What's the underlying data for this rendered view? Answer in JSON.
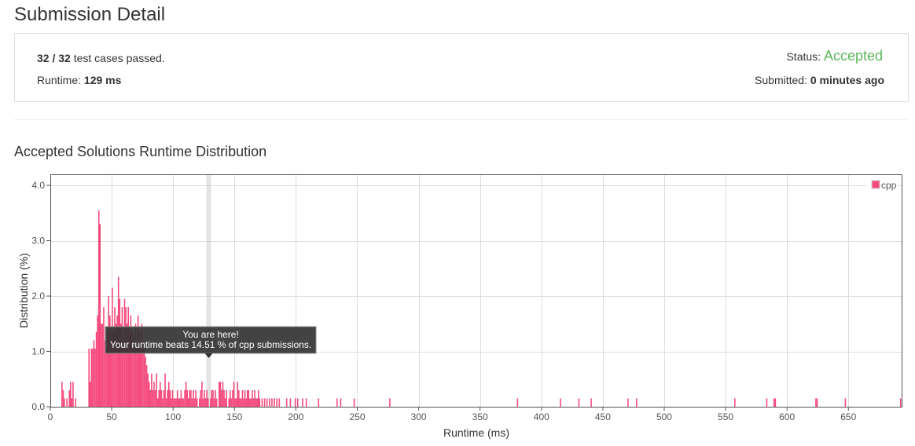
{
  "page": {
    "title": "Submission Detail"
  },
  "summary": {
    "passed_count": "32 / 32",
    "passed_suffix": " test cases passed.",
    "runtime_label": "Runtime: ",
    "runtime_value": "129 ms",
    "status_label": "Status: ",
    "status_value": "Accepted",
    "submitted_label": "Submitted: ",
    "submitted_value": "0 minutes ago"
  },
  "colors": {
    "accent_green": "#5cb85c",
    "bar": "#f54b7e",
    "highlight": "#cccccc"
  },
  "section": {
    "title": "Accepted Solutions Runtime Distribution"
  },
  "tooltip": {
    "line1": "You are here!",
    "line2": "Your runtime beats 14.51 % of cpp submissions."
  },
  "chart_data": {
    "type": "bar",
    "xlabel": "Runtime (ms)",
    "ylabel": "Distribution (%)",
    "xlim": [
      0,
      694
    ],
    "ylim": [
      0,
      4.2
    ],
    "xticks": [
      0,
      50,
      100,
      150,
      200,
      250,
      300,
      350,
      400,
      450,
      500,
      550,
      600,
      650
    ],
    "yticks": [
      0.0,
      1.0,
      2.0,
      3.0,
      4.0
    ],
    "grid": true,
    "legend": "top-right",
    "highlight_x": 129,
    "series": [
      {
        "name": "cpp",
        "points": [
          [
            9,
            0.45
          ],
          [
            10,
            0.3
          ],
          [
            11,
            0.15
          ],
          [
            13,
            0.15
          ],
          [
            15,
            0.3
          ],
          [
            16,
            0.45
          ],
          [
            17,
            0.15
          ],
          [
            18,
            0.45
          ],
          [
            20,
            0.15
          ],
          [
            31,
            1.05
          ],
          [
            32,
            0.45
          ],
          [
            33,
            1.05
          ],
          [
            34,
            1.05
          ],
          [
            35,
            1.2
          ],
          [
            36,
            1.05
          ],
          [
            37,
            1.35
          ],
          [
            38,
            1.65
          ],
          [
            39,
            3.55
          ],
          [
            40,
            3.3
          ],
          [
            41,
            1.5
          ],
          [
            42,
            1.5
          ],
          [
            43,
            1.8
          ],
          [
            44,
            1.2
          ],
          [
            45,
            1.05
          ],
          [
            46,
            1.35
          ],
          [
            47,
            2.0
          ],
          [
            48,
            1.65
          ],
          [
            49,
            1.35
          ],
          [
            50,
            2.15
          ],
          [
            51,
            1.35
          ],
          [
            52,
            1.8
          ],
          [
            53,
            1.5
          ],
          [
            54,
            1.65
          ],
          [
            55,
            2.35
          ],
          [
            56,
            1.95
          ],
          [
            57,
            1.5
          ],
          [
            58,
            1.8
          ],
          [
            59,
            1.05
          ],
          [
            60,
            1.95
          ],
          [
            61,
            1.8
          ],
          [
            62,
            1.5
          ],
          [
            63,
            1.8
          ],
          [
            64,
            1.35
          ],
          [
            65,
            1.65
          ],
          [
            66,
            1.35
          ],
          [
            67,
            1.35
          ],
          [
            68,
            1.05
          ],
          [
            69,
            1.5
          ],
          [
            70,
            1.05
          ],
          [
            71,
            1.65
          ],
          [
            72,
            1.35
          ],
          [
            73,
            1.05
          ],
          [
            74,
            1.5
          ],
          [
            75,
            1.05
          ],
          [
            76,
            1.2
          ],
          [
            77,
            0.9
          ],
          [
            78,
            0.75
          ],
          [
            79,
            0.6
          ],
          [
            80,
            0.45
          ],
          [
            81,
            0.3
          ],
          [
            82,
            0.6
          ],
          [
            83,
            0.3
          ],
          [
            84,
            0.45
          ],
          [
            85,
            0.3
          ],
          [
            86,
            0.6
          ],
          [
            87,
            0.15
          ],
          [
            88,
            0.3
          ],
          [
            89,
            0.45
          ],
          [
            90,
            0.3
          ],
          [
            91,
            0.15
          ],
          [
            92,
            0.3
          ],
          [
            93,
            0.6
          ],
          [
            94,
            0.15
          ],
          [
            95,
            0.3
          ],
          [
            96,
            0.45
          ],
          [
            97,
            0.3
          ],
          [
            98,
            0.15
          ],
          [
            99,
            0.3
          ],
          [
            100,
            0.15
          ],
          [
            101,
            0.15
          ],
          [
            102,
            0.15
          ],
          [
            103,
            0.3
          ],
          [
            104,
            0.15
          ],
          [
            105,
            0.15
          ],
          [
            106,
            0.3
          ],
          [
            107,
            0.15
          ],
          [
            108,
            0.15
          ],
          [
            109,
            0.3
          ],
          [
            110,
            0.45
          ],
          [
            111,
            0.3
          ],
          [
            112,
            0.15
          ],
          [
            113,
            0.3
          ],
          [
            114,
            0.3
          ],
          [
            115,
            0.15
          ],
          [
            116,
            0.3
          ],
          [
            117,
            0.15
          ],
          [
            118,
            0.3
          ],
          [
            119,
            0.15
          ],
          [
            121,
            0.15
          ],
          [
            122,
            0.3
          ],
          [
            123,
            0.45
          ],
          [
            124,
            0.15
          ],
          [
            125,
            0.3
          ],
          [
            126,
            0.15
          ],
          [
            127,
            0.3
          ],
          [
            128,
            0.15
          ],
          [
            130,
            0.15
          ],
          [
            131,
            0.3
          ],
          [
            132,
            0.3
          ],
          [
            133,
            0.15
          ],
          [
            134,
            0.3
          ],
          [
            135,
            0.15
          ],
          [
            137,
            0.45
          ],
          [
            138,
            0.45
          ],
          [
            139,
            0.3
          ],
          [
            140,
            0.45
          ],
          [
            141,
            0.3
          ],
          [
            142,
            0.15
          ],
          [
            143,
            0.3
          ],
          [
            145,
            0.15
          ],
          [
            146,
            0.3
          ],
          [
            147,
            0.15
          ],
          [
            148,
            0.3
          ],
          [
            149,
            0.45
          ],
          [
            150,
            0.15
          ],
          [
            151,
            0.15
          ],
          [
            152,
            0.45
          ],
          [
            153,
            0.3
          ],
          [
            154,
            0.15
          ],
          [
            155,
            0.15
          ],
          [
            156,
            0.3
          ],
          [
            157,
            0.15
          ],
          [
            158,
            0.3
          ],
          [
            159,
            0.15
          ],
          [
            160,
            0.3
          ],
          [
            161,
            0.3
          ],
          [
            162,
            0.15
          ],
          [
            163,
            0.15
          ],
          [
            164,
            0.3
          ],
          [
            165,
            0.15
          ],
          [
            166,
            0.3
          ],
          [
            167,
            0.15
          ],
          [
            168,
            0.15
          ],
          [
            169,
            0.3
          ],
          [
            170,
            0.15
          ],
          [
            172,
            0.15
          ],
          [
            174,
            0.15
          ],
          [
            176,
            0.15
          ],
          [
            178,
            0.15
          ],
          [
            180,
            0.15
          ],
          [
            182,
            0.15
          ],
          [
            184,
            0.15
          ],
          [
            186,
            0.15
          ],
          [
            192,
            0.15
          ],
          [
            195,
            0.15
          ],
          [
            199,
            0.15
          ],
          [
            201,
            0.15
          ],
          [
            205,
            0.15
          ],
          [
            208,
            0.15
          ],
          [
            218,
            0.15
          ],
          [
            233,
            0.15
          ],
          [
            236,
            0.15
          ],
          [
            247,
            0.15
          ],
          [
            276,
            0.15
          ],
          [
            380,
            0.15
          ],
          [
            415,
            0.15
          ],
          [
            430,
            0.15
          ],
          [
            440,
            0.15
          ],
          [
            470,
            0.15
          ],
          [
            477,
            0.15
          ],
          [
            557,
            0.15
          ],
          [
            583,
            0.15
          ],
          [
            589,
            0.15
          ],
          [
            590,
            0.15
          ],
          [
            623,
            0.15
          ],
          [
            624,
            0.15
          ],
          [
            647,
            0.15
          ],
          [
            692,
            0.15
          ]
        ]
      }
    ]
  }
}
